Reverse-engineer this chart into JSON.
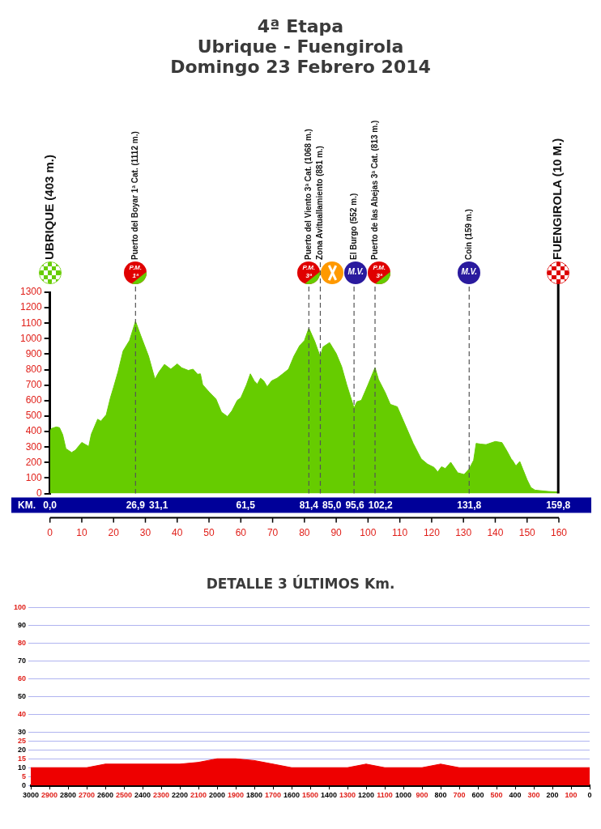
{
  "chart_data": [
    {
      "type": "area",
      "title": "4ª Etapa",
      "subtitle": "Ubrique - Fuengirola\nDomingo 23 Febrero 2014",
      "xlabel": "KM.",
      "color": "#66cc00",
      "x": [
        0,
        0.5,
        2,
        3,
        4,
        5,
        6.8,
        8,
        10,
        12.2,
        13,
        15,
        16,
        17.7,
        19,
        20,
        21.4,
        23,
        25,
        26.9,
        28.5,
        31,
        33,
        34.3,
        36,
        38,
        40,
        41.4,
        43.5,
        45,
        46.4,
        47.3,
        48,
        50.2,
        52.2,
        53.9,
        55.8,
        57.2,
        58.9,
        60,
        61.8,
        63,
        64.2,
        65.2,
        66.2,
        67.2,
        68.3,
        69.7,
        71.4,
        73,
        75,
        76.7,
        78.5,
        80,
        81.4,
        83.3,
        85,
        85.8,
        87.9,
        90,
        91.7,
        93.3,
        95.6,
        96.5,
        97.9,
        100,
        102.2,
        103.3,
        105.4,
        107,
        109.2,
        111.7,
        114.2,
        116.7,
        118.7,
        120.8,
        121.9,
        123.1,
        124.3,
        126,
        128.2,
        130.2,
        131.8,
        133.2,
        134,
        135.4,
        137.1,
        140,
        142.1,
        143.7,
        145,
        145.4,
        146.5,
        147.7,
        148.7,
        150,
        151.2,
        152.5,
        156.7,
        159.8
      ],
      "values": [
        403,
        420,
        430,
        425,
        380,
        290,
        265,
        280,
        330,
        304,
        383,
        480,
        467,
        509,
        618,
        686,
        786,
        921,
        988,
        1112,
        1022,
        887,
        739,
        786,
        834,
        803,
        837,
        812,
        795,
        803,
        770,
        773,
        703,
        652,
        610,
        526,
        497,
        534,
        602,
        618,
        703,
        773,
        728,
        706,
        745,
        728,
        689,
        728,
        745,
        770,
        803,
        887,
        955,
        988,
        1068,
        980,
        881,
        946,
        975,
        904,
        820,
        703,
        552,
        593,
        602,
        703,
        813,
        736,
        652,
        576,
        560,
        442,
        324,
        224,
        190,
        168,
        139,
        173,
        161,
        202,
        134,
        123,
        159,
        215,
        324,
        319,
        316,
        336,
        329,
        274,
        224,
        215,
        178,
        207,
        156,
        89,
        39,
        22,
        13,
        10
      ],
      "xlim": [
        0,
        160
      ],
      "xticks": [
        0,
        10,
        20,
        30,
        40,
        50,
        60,
        70,
        80,
        90,
        100,
        110,
        120,
        130,
        140,
        150,
        160
      ],
      "ylim": [
        0,
        1300
      ],
      "yticks": [
        0,
        100,
        200,
        300,
        400,
        500,
        600,
        700,
        800,
        900,
        1000,
        1100,
        1200,
        1300
      ],
      "ref_lines": [
        {
          "axis": "x",
          "value": 26.9,
          "label": "Puerto del Boyar 1ª Cat. (1112 m.)",
          "color": "#555555",
          "line_style": "dashed"
        },
        {
          "axis": "x",
          "value": 81.4,
          "label": "Puerto del Viento 3ª Cat. (1068 m.)",
          "color": "#555555",
          "line_style": "dashed"
        },
        {
          "axis": "x",
          "value": 85,
          "label": "Zona Avituallamiento (881 m.)",
          "color": "#555555",
          "line_style": "dashed"
        },
        {
          "axis": "x",
          "value": 95.6,
          "label": "El Burgo (552 m.)",
          "color": "#555555",
          "line_style": "dashed"
        },
        {
          "axis": "x",
          "value": 102.2,
          "label": "Puerto de las Abejas 3ª Cat. (813 m.)",
          "color": "#555555",
          "line_style": "dashed"
        },
        {
          "axis": "x",
          "value": 131.8,
          "label": "Coin (159 m.)",
          "color": "#555555",
          "line_style": "dashed"
        },
        {
          "axis": "x",
          "value": 159.8,
          "label": "FUENGIROLA (10 M.)",
          "color": "#000000",
          "line_style": "solid"
        }
      ],
      "annotations": [
        "UBRIQUE (403 m.)",
        {
          "text": "0,0",
          "x": 0,
          "y": 0
        },
        {
          "text": "26,9",
          "x": 26.9,
          "y": 0
        },
        {
          "text": "31,1",
          "x": 31.1,
          "y": 0
        },
        {
          "text": "61,5",
          "x": 61.5,
          "y": 0
        },
        {
          "text": "81,4",
          "x": 81.4,
          "y": 0
        },
        {
          "text": "85,0",
          "x": 85,
          "y": 0
        },
        {
          "text": "95,6",
          "x": 95.6,
          "y": 0
        },
        {
          "text": "102,2",
          "x": 102.2,
          "y": 0
        },
        {
          "text": "131,8",
          "x": 131.8,
          "y": 0
        },
        {
          "text": "159,8",
          "x": 159.8,
          "y": 0
        },
        "P.M. 1ª",
        "P.M. 3ª",
        "M.V.",
        "P.M. 3ª",
        "M.V."
      ]
    },
    {
      "type": "area",
      "title": "DETALLE 3 ÚLTIMOS Km.",
      "color": "#ee0000",
      "grid": "y",
      "x": [
        3000,
        2900,
        2800,
        2700,
        2600,
        2200,
        2100,
        2000,
        1900,
        1800,
        1700,
        1600,
        1300,
        1200,
        1100,
        900,
        800,
        700,
        0
      ],
      "values": [
        10,
        10,
        10,
        10,
        12,
        12,
        13,
        15,
        15,
        14,
        12,
        10,
        10,
        12,
        10,
        10,
        12,
        10,
        10
      ],
      "xlim": [
        3000,
        0
      ],
      "xticks": [
        0,
        100,
        200,
        300,
        400,
        500,
        600,
        700,
        800,
        900,
        1000,
        1100,
        1200,
        1300,
        1400,
        1500,
        1600,
        1700,
        1800,
        1900,
        2000,
        2100,
        2200,
        2300,
        2400,
        2500,
        2600,
        2700,
        2800,
        2900,
        3000
      ],
      "ylim": [
        0,
        100
      ],
      "yticks": [
        0,
        5,
        10,
        15,
        20,
        25,
        30,
        40,
        50,
        60,
        70,
        80,
        90,
        100
      ]
    }
  ]
}
